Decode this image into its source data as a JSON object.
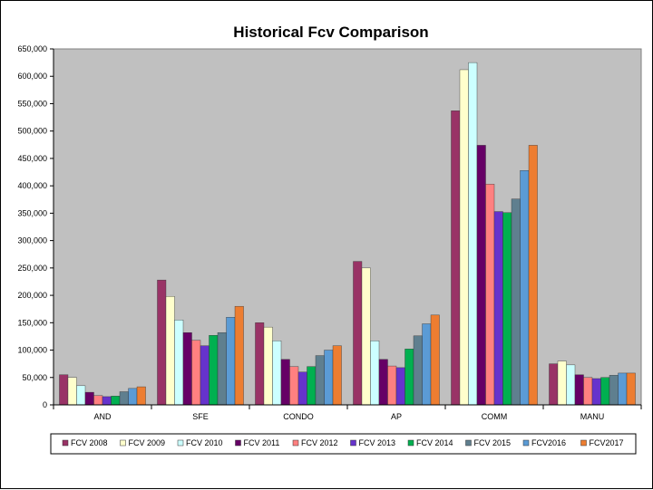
{
  "chart_data": {
    "type": "bar",
    "title": "Historical Fcv Comparison",
    "xlabel": "",
    "ylabel": "",
    "ylim": [
      0,
      650000
    ],
    "yticks": [
      "0",
      "50,000",
      "100,000",
      "150,000",
      "200,000",
      "250,000",
      "300,000",
      "350,000",
      "400,000",
      "450,000",
      "500,000",
      "550,000",
      "600,000",
      "650,000"
    ],
    "grid": false,
    "legend_position": "bottom",
    "plot_background": "#c0c0c0",
    "categories": [
      "AND",
      "SFE",
      "CONDO",
      "AP",
      "COMM",
      "MANU"
    ],
    "series": [
      {
        "name": "FCV 2008",
        "color": "#993366",
        "values": [
          55000,
          228000,
          150000,
          262000,
          537000,
          75000
        ]
      },
      {
        "name": "FCV 2009",
        "color": "#ffffcc",
        "values": [
          50000,
          198000,
          142000,
          250000,
          612000,
          80000
        ]
      },
      {
        "name": "FCV 2010",
        "color": "#ccffff",
        "values": [
          35000,
          155000,
          117000,
          117000,
          625000,
          73000
        ]
      },
      {
        "name": "FCV 2011",
        "color": "#660066",
        "values": [
          23000,
          132000,
          83000,
          83000,
          474000,
          55000
        ]
      },
      {
        "name": "FCV 2012",
        "color": "#ff8080",
        "values": [
          17000,
          118000,
          70000,
          71000,
          403000,
          50000
        ]
      },
      {
        "name": "FCV 2013",
        "color": "#6633cc",
        "values": [
          15000,
          108000,
          60000,
          68000,
          353000,
          48000
        ]
      },
      {
        "name": "FCV 2014",
        "color": "#00b050",
        "values": [
          16000,
          127000,
          70000,
          102000,
          351000,
          50000
        ]
      },
      {
        "name": "FCV 2015",
        "color": "#5f7f8f",
        "values": [
          24000,
          132000,
          90000,
          126000,
          376000,
          54000
        ]
      },
      {
        "name": "FCV2016",
        "color": "#5b9bd5",
        "values": [
          30000,
          160000,
          100000,
          148000,
          428000,
          58000
        ]
      },
      {
        "name": "FCV2017",
        "color": "#ed7d31",
        "values": [
          33000,
          180000,
          108000,
          164000,
          474000,
          58000
        ]
      }
    ]
  }
}
